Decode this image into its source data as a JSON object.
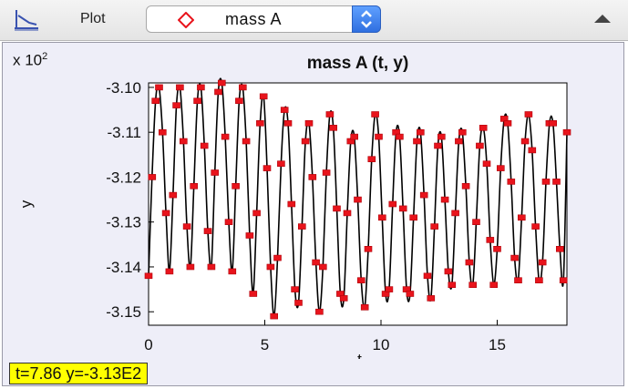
{
  "toolbar": {
    "plot_icon": "plot-axes-icon",
    "plot_label": "Plot",
    "series_select": {
      "marker_icon": "diamond-marker-icon",
      "value": "mass A",
      "stepper_icon": "up-down-stepper-icon"
    },
    "collapse_icon": "triangle-up-icon"
  },
  "axis_multiplier": {
    "base": "x 10",
    "exponent": "2"
  },
  "status": {
    "text": "t=7.86  y=-3.13E2"
  },
  "colors": {
    "marker": "#e8141c",
    "line": "#000000",
    "status_bg": "#ffff00",
    "panel_bg": "#eeeef8",
    "select_accent": "#2f6fe0"
  },
  "chart_data": {
    "type": "line",
    "title": "mass A (t, y)",
    "xlabel": "t",
    "ylabel": "y",
    "xlim": [
      0,
      18
    ],
    "ylim": [
      -3.153,
      -3.099
    ],
    "xticks": [
      "0",
      "5",
      "10",
      "15"
    ],
    "yticks": [
      "-3.10",
      "-3.11",
      "-3.12",
      "-3.13",
      "-3.14",
      "-3.15"
    ],
    "grid": true,
    "marker": "square",
    "series": [
      {
        "name": "mass A",
        "points": [
          [
            0.0,
            -3.142
          ],
          [
            0.15,
            -3.12
          ],
          [
            0.3,
            -3.103
          ],
          [
            0.45,
            -3.1
          ],
          [
            0.6,
            -3.11
          ],
          [
            0.75,
            -3.128
          ],
          [
            0.9,
            -3.141
          ],
          [
            1.05,
            -3.124
          ],
          [
            1.2,
            -3.104
          ],
          [
            1.35,
            -3.1
          ],
          [
            1.5,
            -3.112
          ],
          [
            1.65,
            -3.131
          ],
          [
            1.8,
            -3.14
          ],
          [
            1.95,
            -3.122
          ],
          [
            2.1,
            -3.103
          ],
          [
            2.25,
            -3.1
          ],
          [
            2.4,
            -3.113
          ],
          [
            2.55,
            -3.132
          ],
          [
            2.7,
            -3.14
          ],
          [
            2.85,
            -3.119
          ],
          [
            3.0,
            -3.101
          ],
          [
            3.15,
            -3.099
          ],
          [
            3.3,
            -3.111
          ],
          [
            3.45,
            -3.13
          ],
          [
            3.6,
            -3.141
          ],
          [
            3.75,
            -3.122
          ],
          [
            3.9,
            -3.103
          ],
          [
            4.05,
            -3.1
          ],
          [
            4.2,
            -3.112
          ],
          [
            4.35,
            -3.133
          ],
          [
            4.5,
            -3.146
          ],
          [
            4.65,
            -3.128
          ],
          [
            4.8,
            -3.108
          ],
          [
            4.95,
            -3.102
          ],
          [
            5.1,
            -3.118
          ],
          [
            5.25,
            -3.14
          ],
          [
            5.4,
            -3.151
          ],
          [
            5.55,
            -3.138
          ],
          [
            5.7,
            -3.117
          ],
          [
            5.85,
            -3.105
          ],
          [
            6.0,
            -3.108
          ],
          [
            6.15,
            -3.126
          ],
          [
            6.3,
            -3.145
          ],
          [
            6.45,
            -3.148
          ],
          [
            6.6,
            -3.131
          ],
          [
            6.75,
            -3.112
          ],
          [
            6.9,
            -3.108
          ],
          [
            7.05,
            -3.12
          ],
          [
            7.2,
            -3.139
          ],
          [
            7.35,
            -3.15
          ],
          [
            7.5,
            -3.14
          ],
          [
            7.65,
            -3.119
          ],
          [
            7.8,
            -3.106
          ],
          [
            7.95,
            -3.109
          ],
          [
            8.1,
            -3.127
          ],
          [
            8.25,
            -3.146
          ],
          [
            8.4,
            -3.147
          ],
          [
            8.55,
            -3.128
          ],
          [
            8.7,
            -3.112
          ],
          [
            8.85,
            -3.111
          ],
          [
            9.0,
            -3.125
          ],
          [
            9.15,
            -3.143
          ],
          [
            9.3,
            -3.149
          ],
          [
            9.45,
            -3.136
          ],
          [
            9.6,
            -3.116
          ],
          [
            9.75,
            -3.106
          ],
          [
            9.9,
            -3.111
          ],
          [
            10.05,
            -3.129
          ],
          [
            10.2,
            -3.146
          ],
          [
            10.35,
            -3.145
          ],
          [
            10.5,
            -3.126
          ],
          [
            10.65,
            -3.11
          ],
          [
            10.8,
            -3.111
          ],
          [
            10.95,
            -3.127
          ],
          [
            11.1,
            -3.145
          ],
          [
            11.25,
            -3.146
          ],
          [
            11.4,
            -3.129
          ],
          [
            11.55,
            -3.112
          ],
          [
            11.7,
            -3.11
          ],
          [
            11.85,
            -3.124
          ],
          [
            12.0,
            -3.142
          ],
          [
            12.15,
            -3.147
          ],
          [
            12.3,
            -3.131
          ],
          [
            12.45,
            -3.113
          ],
          [
            12.6,
            -3.111
          ],
          [
            12.75,
            -3.125
          ],
          [
            12.9,
            -3.141
          ],
          [
            13.05,
            -3.144
          ],
          [
            13.2,
            -3.128
          ],
          [
            13.35,
            -3.112
          ],
          [
            13.5,
            -3.11
          ],
          [
            13.65,
            -3.122
          ],
          [
            13.8,
            -3.139
          ],
          [
            13.95,
            -3.144
          ],
          [
            14.1,
            -3.13
          ],
          [
            14.25,
            -3.113
          ],
          [
            14.4,
            -3.109
          ],
          [
            14.55,
            -3.117
          ],
          [
            14.7,
            -3.134
          ],
          [
            14.85,
            -3.144
          ],
          [
            15.0,
            -3.136
          ],
          [
            15.15,
            -3.118
          ],
          [
            15.3,
            -3.107
          ],
          [
            15.45,
            -3.108
          ],
          [
            15.6,
            -3.121
          ],
          [
            15.75,
            -3.138
          ],
          [
            15.9,
            -3.143
          ],
          [
            16.05,
            -3.129
          ],
          [
            16.2,
            -3.112
          ],
          [
            16.35,
            -3.106
          ],
          [
            16.5,
            -3.114
          ],
          [
            16.65,
            -3.131
          ],
          [
            16.8,
            -3.143
          ],
          [
            16.95,
            -3.139
          ],
          [
            17.1,
            -3.121
          ],
          [
            17.25,
            -3.108
          ],
          [
            17.4,
            -3.108
          ],
          [
            17.55,
            -3.121
          ],
          [
            17.7,
            -3.136
          ],
          [
            17.85,
            -3.143
          ],
          [
            18.0,
            -3.11
          ]
        ]
      }
    ]
  }
}
